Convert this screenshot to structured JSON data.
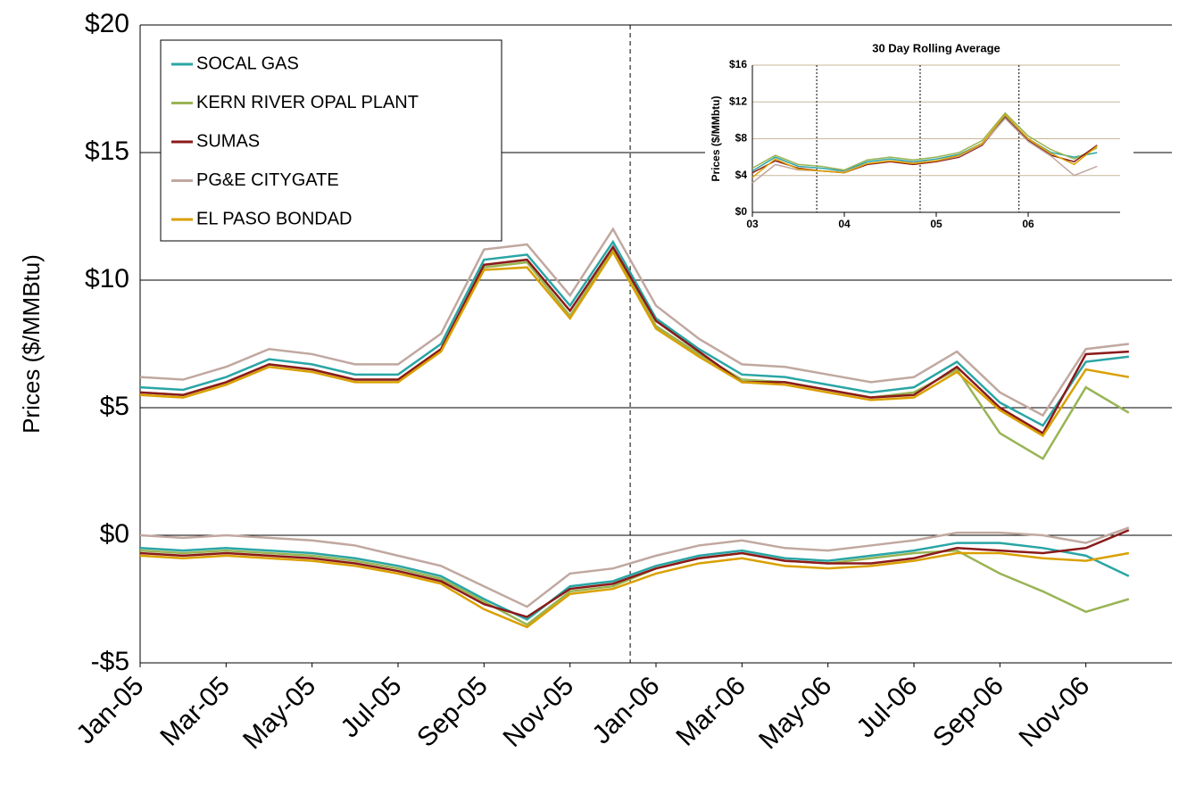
{
  "chart_data": [
    {
      "type": "line",
      "y_label": "Prices ($/MMBtu)",
      "x": [
        "Jan-05",
        null,
        "Mar-05",
        null,
        "May-05",
        null,
        "Jul-05",
        null,
        "Sep-05",
        null,
        "Nov-05",
        null,
        "Jan-06",
        null,
        "Mar-06",
        null,
        "May-06",
        null,
        "Jul-06",
        null,
        "Sep-06",
        null,
        "Nov-06",
        null
      ],
      "ylim": [
        -5,
        20
      ],
      "yticks": [
        {
          "value": -5,
          "label": "-$5"
        },
        {
          "value": 0,
          "label": "$0"
        },
        {
          "value": 5,
          "label": "$5"
        },
        {
          "value": 10,
          "label": "$10"
        },
        {
          "value": 15,
          "label": "$15"
        },
        {
          "value": 20,
          "label": "$20"
        }
      ],
      "grid": true,
      "legend": "upper-left",
      "series": [
        {
          "name": "SOCAL GAS",
          "color": "#2aa5a5",
          "values": [
            5.8,
            5.7,
            6.2,
            6.9,
            6.7,
            6.3,
            6.3,
            7.5,
            10.8,
            11.0,
            9.0,
            11.5,
            8.5,
            7.3,
            6.3,
            6.2,
            5.9,
            5.6,
            5.8,
            6.8,
            5.2,
            4.3,
            6.8,
            7.0
          ],
          "basis_values": [
            -0.5,
            -0.6,
            -0.5,
            -0.6,
            -0.7,
            -0.9,
            -1.2,
            -1.6,
            -2.5,
            -3.3,
            -2.0,
            -1.8,
            -1.2,
            -0.8,
            -0.6,
            -0.9,
            -1.0,
            -0.8,
            -0.6,
            -0.3,
            -0.3,
            -0.5,
            -0.8,
            -1.6
          ]
        },
        {
          "name": "KERN RIVER OPAL PLANT",
          "color": "#99b454",
          "values": [
            5.6,
            5.5,
            6.0,
            6.7,
            6.5,
            6.1,
            6.1,
            7.3,
            10.5,
            10.7,
            8.6,
            11.2,
            8.2,
            7.1,
            6.1,
            6.0,
            5.7,
            5.4,
            5.6,
            6.5,
            4.0,
            3.0,
            5.8,
            4.8
          ],
          "basis_values": [
            -0.6,
            -0.7,
            -0.6,
            -0.7,
            -0.8,
            -1.0,
            -1.3,
            -1.7,
            -2.6,
            -3.5,
            -2.2,
            -2.0,
            -1.3,
            -0.9,
            -0.7,
            -1.0,
            -1.1,
            -0.9,
            -0.7,
            -0.6,
            -1.5,
            -2.2,
            -3.0,
            -2.5
          ]
        },
        {
          "name": "SUMAS",
          "color": "#8b1a1a",
          "values": [
            5.6,
            5.5,
            6.0,
            6.7,
            6.5,
            6.1,
            6.1,
            7.3,
            10.6,
            10.8,
            8.8,
            11.3,
            8.4,
            7.2,
            6.0,
            6.0,
            5.7,
            5.4,
            5.5,
            6.6,
            5.0,
            4.0,
            7.1,
            7.2
          ],
          "basis_values": [
            -0.7,
            -0.8,
            -0.7,
            -0.8,
            -0.9,
            -1.1,
            -1.4,
            -1.8,
            -2.7,
            -3.2,
            -2.1,
            -1.9,
            -1.3,
            -0.9,
            -0.7,
            -1.0,
            -1.1,
            -1.1,
            -0.9,
            -0.5,
            -0.6,
            -0.7,
            -0.5,
            0.2
          ]
        },
        {
          "name": "PG&E CITYGATE",
          "color": "#c0a8a0",
          "values": [
            6.2,
            6.1,
            6.6,
            7.3,
            7.1,
            6.7,
            6.7,
            7.9,
            11.2,
            11.4,
            9.4,
            12.0,
            9.0,
            7.7,
            6.7,
            6.6,
            6.3,
            6.0,
            6.2,
            7.2,
            5.6,
            4.7,
            7.3,
            7.5
          ],
          "basis_values": [
            0.0,
            -0.1,
            0.0,
            -0.1,
            -0.2,
            -0.4,
            -0.8,
            -1.2,
            -2.0,
            -2.8,
            -1.5,
            -1.3,
            -0.8,
            -0.4,
            -0.2,
            -0.5,
            -0.6,
            -0.4,
            -0.2,
            0.1,
            0.1,
            0.0,
            -0.3,
            0.3
          ]
        },
        {
          "name": "EL PASO BONDAD",
          "color": "#d9a000",
          "values": [
            5.5,
            5.4,
            5.9,
            6.6,
            6.4,
            6.0,
            6.0,
            7.2,
            10.4,
            10.5,
            8.5,
            11.1,
            8.1,
            7.0,
            6.0,
            5.9,
            5.6,
            5.3,
            5.4,
            6.4,
            4.9,
            3.9,
            6.5,
            6.2
          ],
          "basis_values": [
            -0.8,
            -0.9,
            -0.8,
            -0.9,
            -1.0,
            -1.2,
            -1.5,
            -1.9,
            -2.9,
            -3.6,
            -2.3,
            -2.1,
            -1.5,
            -1.1,
            -0.9,
            -1.2,
            -1.3,
            -1.2,
            -1.0,
            -0.7,
            -0.7,
            -0.9,
            -1.0,
            -0.7
          ]
        }
      ]
    },
    {
      "type": "line",
      "title": "30 Day Rolling Average",
      "y_label": "Prices ($/MMbtu)",
      "x": [
        "03",
        null,
        null,
        null,
        "04",
        null,
        null,
        null,
        "05",
        null,
        null,
        null,
        "06",
        null,
        null,
        null
      ],
      "ylim": [
        0,
        16
      ],
      "yticks": [
        {
          "value": 0,
          "label": "$0"
        },
        {
          "value": 4,
          "label": "$4"
        },
        {
          "value": 8,
          "label": "$8"
        },
        {
          "value": 12,
          "label": "$12"
        },
        {
          "value": 16,
          "label": "$16"
        }
      ],
      "grid": true,
      "series": [
        {
          "name": "SOCAL GAS",
          "color": "#2aa5a5",
          "values": [
            4.5,
            6.0,
            5.0,
            4.8,
            4.5,
            5.5,
            5.8,
            5.5,
            5.8,
            6.3,
            7.5,
            10.5,
            8.0,
            6.5,
            6.0,
            6.5
          ]
        },
        {
          "name": "KERN RIVER OPAL PLANT",
          "color": "#99b454",
          "values": [
            4.8,
            6.2,
            5.2,
            5.0,
            4.6,
            5.7,
            6.0,
            5.7,
            6.0,
            6.5,
            7.8,
            10.8,
            8.3,
            6.8,
            5.8,
            7.0
          ]
        },
        {
          "name": "SUMAS",
          "color": "#8b1a1a",
          "values": [
            4.3,
            5.6,
            4.8,
            4.5,
            4.3,
            5.2,
            5.5,
            5.2,
            5.5,
            6.0,
            7.3,
            10.3,
            7.8,
            6.2,
            5.5,
            7.3
          ]
        },
        {
          "name": "PG&E CITYGATE",
          "color": "#c0a8a0",
          "values": [
            3.2,
            5.2,
            4.6,
            4.5,
            4.4,
            5.3,
            5.6,
            5.4,
            5.6,
            6.1,
            7.4,
            10.2,
            7.7,
            6.1,
            4.0,
            5.0
          ]
        },
        {
          "name": "EL PASO BONDAD",
          "color": "#d9a000",
          "values": [
            3.8,
            5.8,
            4.7,
            4.5,
            4.3,
            5.3,
            5.6,
            5.3,
            5.6,
            6.2,
            7.5,
            10.6,
            8.0,
            6.4,
            5.2,
            7.2
          ]
        }
      ]
    }
  ]
}
